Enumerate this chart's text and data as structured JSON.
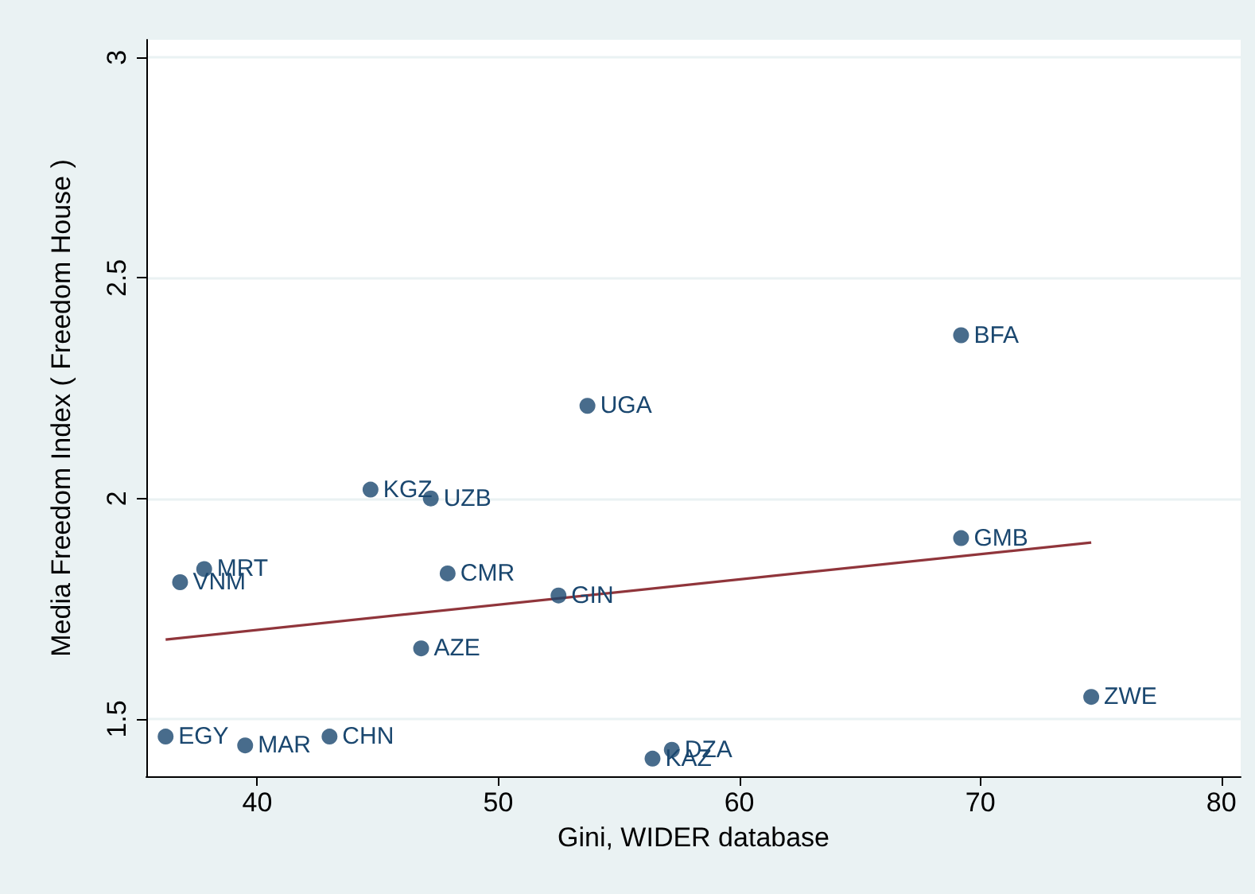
{
  "chart_data": {
    "type": "scatter",
    "xlabel": "Gini, WIDER database",
    "ylabel": "Media Freedom Index ( Freedom House )",
    "xlim": [
      35.4,
      80.8
    ],
    "xticks": [
      40,
      50,
      60,
      70,
      80
    ],
    "ylim": [
      1.37,
      3.04
    ],
    "yticks": [
      1.5,
      2,
      2.5,
      3
    ],
    "grid": "y",
    "marker": "circle",
    "series": [
      {
        "color": "#1a476f",
        "x": [
          69.2,
          53.7,
          44.7,
          47.2,
          69.2,
          37.8,
          36.8,
          47.9,
          52.5,
          46.8,
          74.6,
          36.2,
          39.5,
          43.0,
          57.2,
          56.4
        ],
        "values": [
          2.37,
          2.21,
          2.02,
          2.0,
          1.91,
          1.84,
          1.81,
          1.83,
          1.78,
          1.66,
          1.55,
          1.46,
          1.44,
          1.46,
          1.43,
          1.41
        ]
      },
      {
        "type": "line",
        "color": "#90353b",
        "marker": "none",
        "line_style": "solid",
        "x": [
          36.2,
          74.6
        ],
        "values": [
          1.68,
          1.9
        ]
      }
    ],
    "annotations": [
      {
        "text": "BFA",
        "x": 69.2,
        "y": 2.37
      },
      {
        "text": "UGA",
        "x": 53.7,
        "y": 2.21
      },
      {
        "text": "KGZ",
        "x": 44.7,
        "y": 2.02
      },
      {
        "text": "UZB",
        "x": 47.2,
        "y": 2.0
      },
      {
        "text": "GMB",
        "x": 69.2,
        "y": 1.91
      },
      {
        "text": "MRT",
        "x": 37.8,
        "y": 1.84
      },
      {
        "text": "VNM",
        "x": 36.8,
        "y": 1.81
      },
      {
        "text": "CMR",
        "x": 47.9,
        "y": 1.83
      },
      {
        "text": "GIN",
        "x": 52.5,
        "y": 1.78
      },
      {
        "text": "AZE",
        "x": 46.8,
        "y": 1.66
      },
      {
        "text": "ZWE",
        "x": 74.6,
        "y": 1.55
      },
      {
        "text": "EGY",
        "x": 36.2,
        "y": 1.46
      },
      {
        "text": "MAR",
        "x": 39.5,
        "y": 1.44
      },
      {
        "text": "CHN",
        "x": 43.0,
        "y": 1.46
      },
      {
        "text": "DZA",
        "x": 57.2,
        "y": 1.43
      },
      {
        "text": "KAZ",
        "x": 56.4,
        "y": 1.41
      }
    ]
  }
}
